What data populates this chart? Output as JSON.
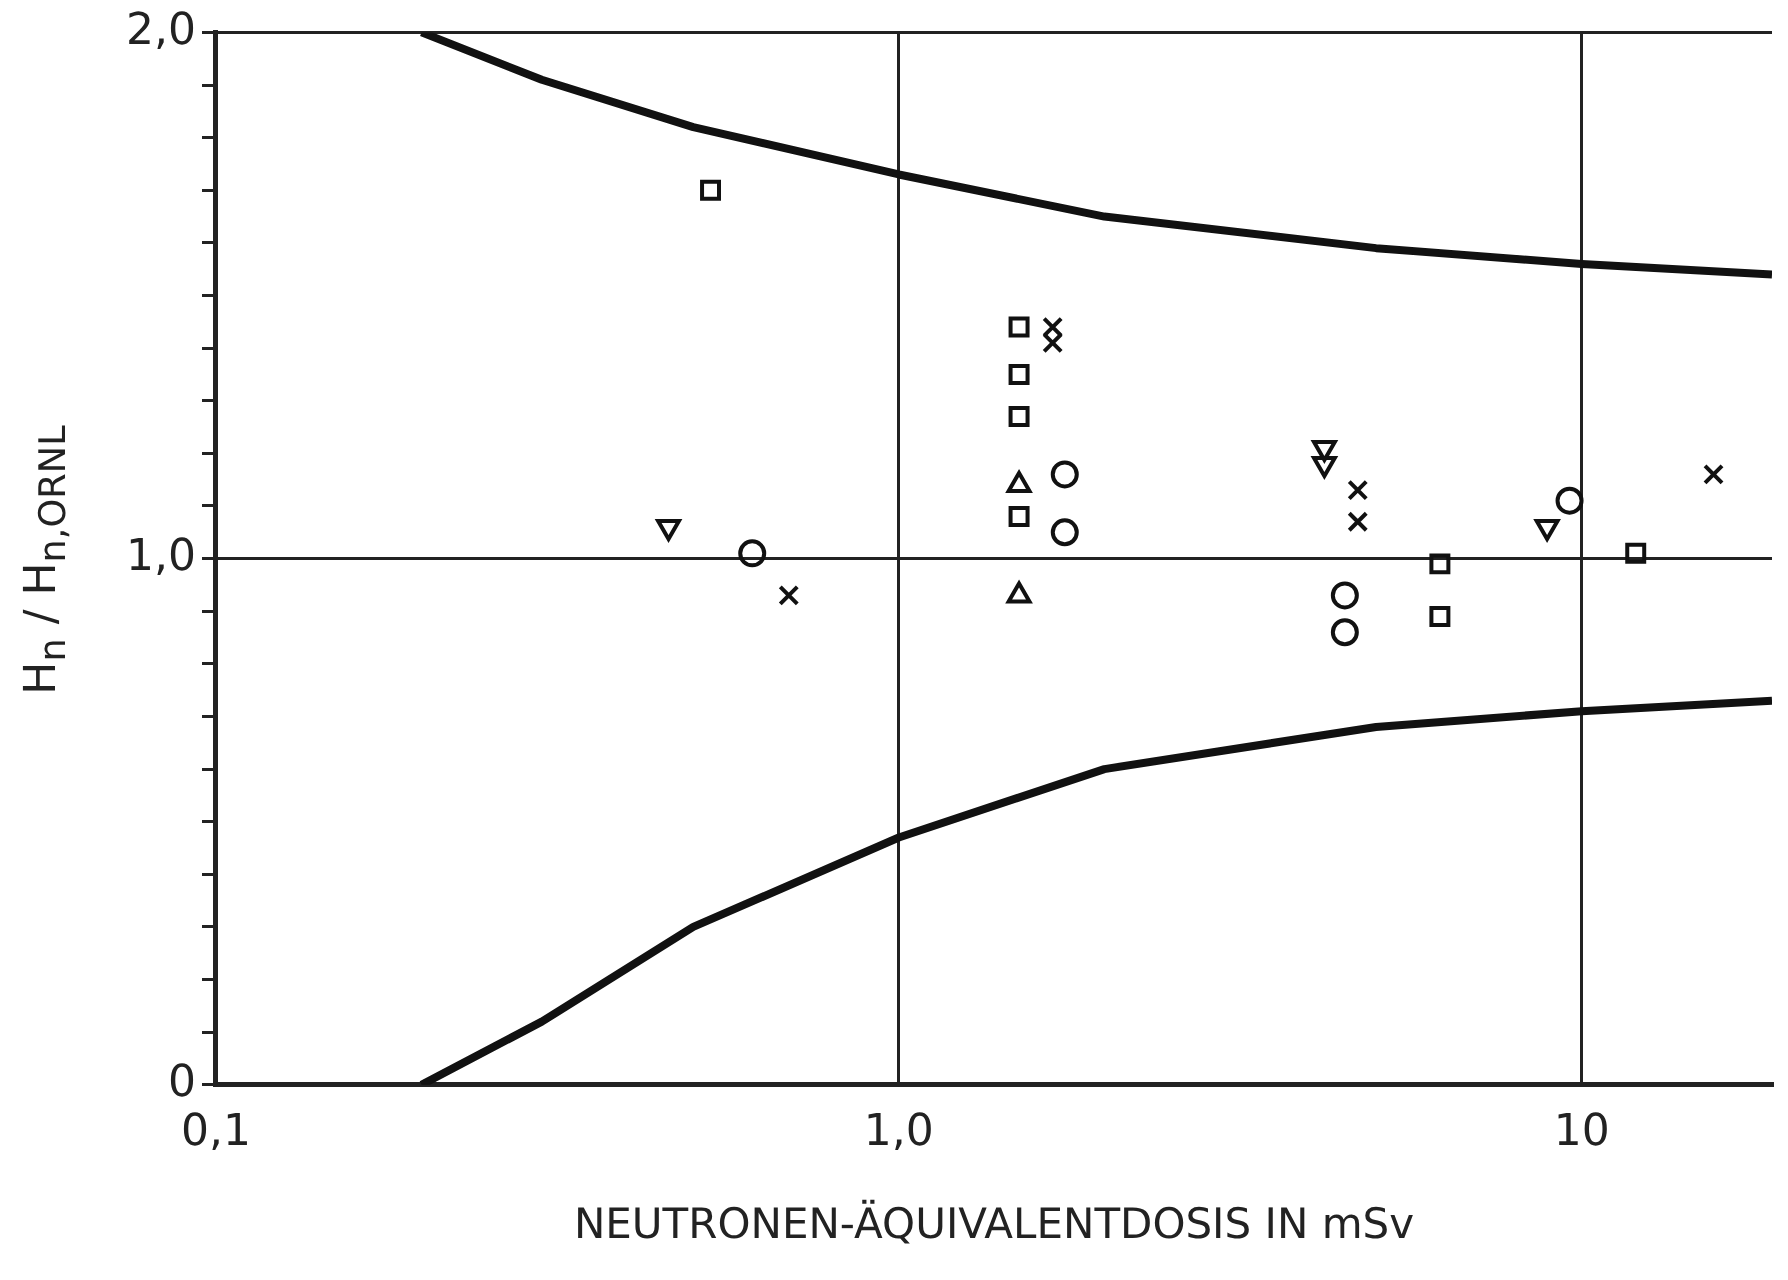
{
  "chart_data": {
    "type": "scatter",
    "xlabel": "NEUTRONEN-ÄQUIVALENTDOSIS IN mSv",
    "ylabel": "H$_{n}$ / H$_{n,ORNL}$",
    "log": "x",
    "xlim": [
      0.1,
      19
    ],
    "xticks": [
      {
        "value": 0.1,
        "label": "0,1"
      },
      {
        "value": 1,
        "label": "1,0"
      },
      10
    ],
    "ylim": [
      0,
      2
    ],
    "yticks": [
      0,
      {
        "value": 0.1,
        "label": null
      },
      {
        "value": 0.2,
        "label": null
      },
      {
        "value": 0.3,
        "label": null
      },
      {
        "value": 0.4,
        "label": null
      },
      {
        "value": 0.5,
        "label": null
      },
      {
        "value": 0.6,
        "label": null
      },
      {
        "value": 0.7,
        "label": null
      },
      {
        "value": 0.8,
        "label": null
      },
      {
        "value": 0.9,
        "label": null
      },
      {
        "value": 1,
        "label": "1,0"
      },
      {
        "value": 1.1,
        "label": null
      },
      {
        "value": 1.2,
        "label": null
      },
      {
        "value": 1.3,
        "label": null
      },
      {
        "value": 1.4,
        "label": null
      },
      {
        "value": 1.5,
        "label": null
      },
      {
        "value": 1.6,
        "label": null
      },
      {
        "value": 1.7,
        "label": null
      },
      {
        "value": 1.8,
        "label": null
      },
      {
        "value": 1.9,
        "label": null
      },
      {
        "value": 2,
        "label": "2,0"
      }
    ],
    "grid": true,
    "legend": false,
    "series": [
      {
        "color": "#111111",
        "marker": "square",
        "x": [
          0.53,
          1.5,
          1.5,
          6.2,
          6.2,
          12
        ],
        "values": [
          1.7,
          1.35,
          1.27,
          0.99,
          0.89,
          1.01
        ]
      },
      {
        "color": "#111111",
        "marker": "square",
        "x": [
          1.5,
          1.5
        ],
        "values": [
          1.44,
          1.08
        ]
      },
      {
        "color": "#111111",
        "marker": "triangle",
        "x": [
          1.5,
          1.5
        ],
        "values": [
          1.14,
          0.93
        ]
      },
      {
        "color": "#111111",
        "marker": "triangle-down",
        "x": [
          0.46,
          4.2,
          4.2,
          8.9
        ],
        "values": [
          1.06,
          1.21,
          1.18,
          1.06
        ]
      },
      {
        "color": "#111111",
        "marker": "circle",
        "x": [
          0.61,
          1.75,
          1.75,
          4.5,
          4.5,
          9.6
        ],
        "values": [
          1.01,
          1.16,
          1.05,
          0.93,
          0.86,
          1.11
        ]
      },
      {
        "color": "#111111",
        "marker": "cross",
        "x": [
          0.69,
          1.68,
          1.68,
          4.7,
          4.7,
          15.6
        ],
        "values": [
          0.93,
          1.44,
          1.41,
          1.13,
          1.07,
          1.16
        ]
      },
      {
        "type": "line",
        "color": "#111111",
        "marker": "none",
        "x": [
          0.2,
          0.3,
          0.5,
          1,
          2,
          5,
          10,
          19
        ],
        "values": [
          2.0,
          1.91,
          1.82,
          1.73,
          1.65,
          1.59,
          1.56,
          1.54
        ]
      },
      {
        "type": "line",
        "color": "#111111",
        "marker": "none",
        "x": [
          0.2,
          0.3,
          0.5,
          1,
          2,
          5,
          10,
          19
        ],
        "values": [
          0,
          0.12,
          0.3,
          0.47,
          0.6,
          0.68,
          0.71,
          0.73
        ]
      }
    ]
  }
}
